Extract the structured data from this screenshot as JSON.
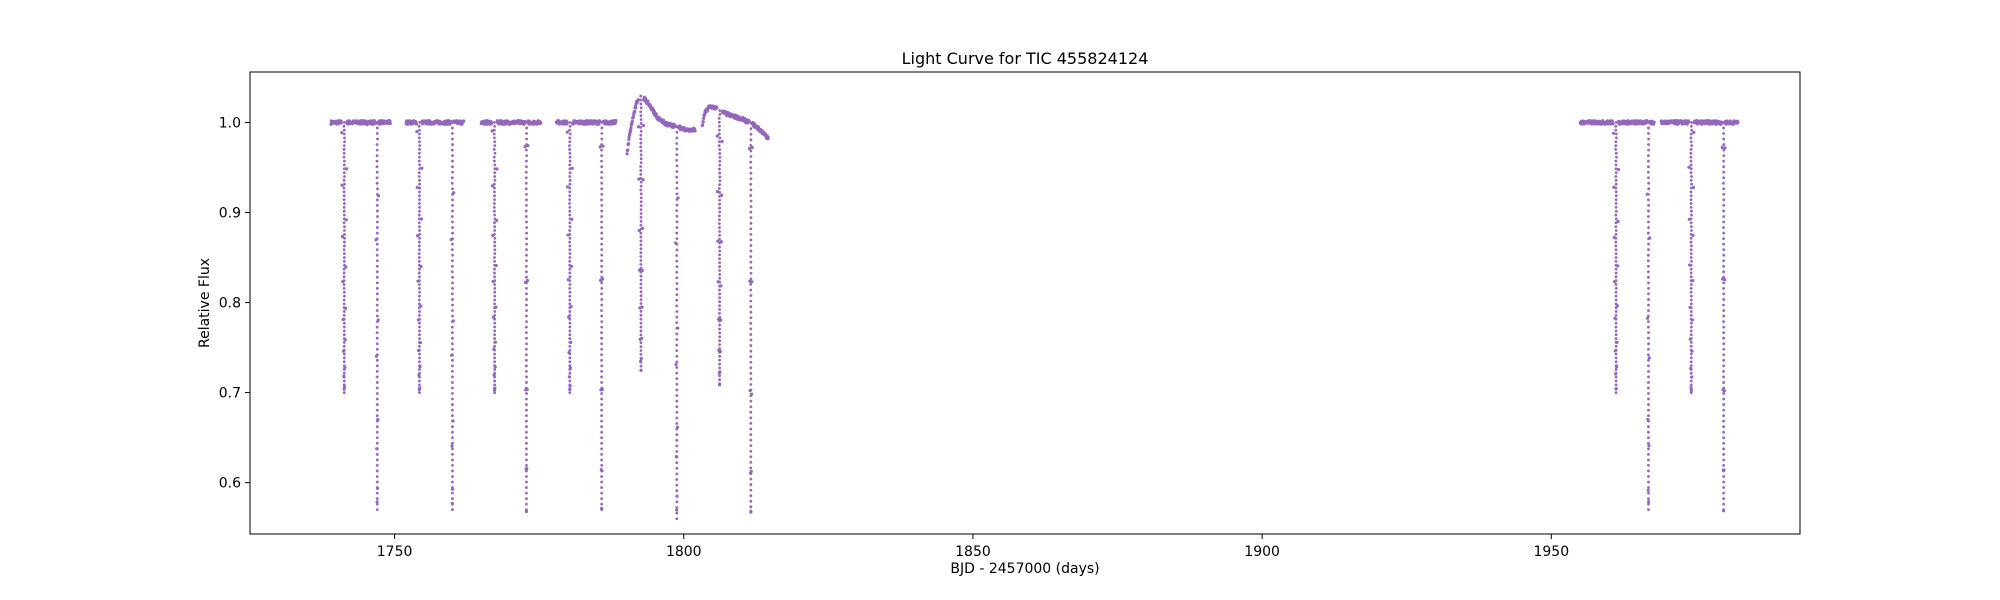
{
  "chart_data": {
    "type": "scatter",
    "title": "Light Curve for TIC 455824124",
    "xlabel": "BJD - 2457000 (days)",
    "ylabel": "Relative Flux",
    "xlim": [
      1725,
      1993
    ],
    "ylim": [
      0.543,
      1.056
    ],
    "xticks": [
      1750,
      1800,
      1850,
      1900,
      1950
    ],
    "yticks": [
      0.6,
      0.7,
      0.8,
      0.9,
      1.0
    ],
    "ytick_labels": [
      "0.6",
      "0.7",
      "0.8",
      "0.9",
      "1.0"
    ],
    "grid": false,
    "legend": "none",
    "color": "#9467bd",
    "segments": [
      {
        "x0": 1739.0,
        "x1": 1749.3,
        "base": [
          [
            0,
            1.0
          ]
        ]
      },
      {
        "x0": 1752.0,
        "x1": 1762.0,
        "base": [
          [
            0,
            1.0
          ]
        ]
      },
      {
        "x0": 1765.0,
        "x1": 1775.3,
        "base": [
          [
            0,
            1.0
          ]
        ]
      },
      {
        "x0": 1778.0,
        "x1": 1788.3,
        "base": [
          [
            0,
            1.0
          ]
        ]
      },
      {
        "x0": 1790.2,
        "x1": 1802.0,
        "base": [
          [
            1790.2,
            0.965
          ],
          [
            1790.6,
            0.985
          ],
          [
            1791.2,
            1.005
          ],
          [
            1792.0,
            1.025
          ],
          [
            1792.7,
            1.03
          ],
          [
            1794.0,
            1.02
          ],
          [
            1795.5,
            1.005
          ],
          [
            1797.0,
            0.998
          ],
          [
            1799.0,
            0.995
          ],
          [
            1800.5,
            0.992
          ],
          [
            1802.0,
            0.992
          ]
        ]
      },
      {
        "x0": 1803.2,
        "x1": 1814.6,
        "base": [
          [
            1803.2,
            0.995
          ],
          [
            1803.6,
            1.01
          ],
          [
            1804.5,
            1.018
          ],
          [
            1805.5,
            1.016
          ],
          [
            1806.5,
            1.012
          ],
          [
            1808.0,
            1.008
          ],
          [
            1810.0,
            1.004
          ],
          [
            1812.0,
            0.998
          ],
          [
            1813.5,
            0.99
          ],
          [
            1814.6,
            0.982
          ]
        ]
      },
      {
        "x0": 1955.0,
        "x1": 1967.8,
        "base": [
          [
            0,
            1.0
          ]
        ]
      },
      {
        "x0": 1969.0,
        "x1": 1982.3,
        "base": [
          [
            0,
            1.0
          ]
        ]
      }
    ],
    "eclipses": [
      {
        "t": 1741.3,
        "depth": 0.7,
        "width": 0.45
      },
      {
        "t": 1747.0,
        "depth": 0.57,
        "width": 0.25
      },
      {
        "t": 1754.3,
        "depth": 0.7,
        "width": 0.45
      },
      {
        "t": 1760.0,
        "depth": 0.57,
        "width": 0.25
      },
      {
        "t": 1767.3,
        "depth": 0.7,
        "width": 0.45
      },
      {
        "t": 1772.8,
        "depth": 0.57,
        "width": 0.25
      },
      {
        "t": 1780.3,
        "depth": 0.7,
        "width": 0.45
      },
      {
        "t": 1785.8,
        "depth": 0.57,
        "width": 0.25
      },
      {
        "t": 1792.6,
        "depth": 0.725,
        "width": 0.45
      },
      {
        "t": 1798.8,
        "depth": 0.56,
        "width": 0.25
      },
      {
        "t": 1806.2,
        "depth": 0.71,
        "width": 0.45
      },
      {
        "t": 1811.6,
        "depth": 0.567,
        "width": 0.25
      },
      {
        "t": 1961.2,
        "depth": 0.7,
        "width": 0.45
      },
      {
        "t": 1966.8,
        "depth": 0.57,
        "width": 0.25
      },
      {
        "t": 1974.2,
        "depth": 0.7,
        "width": 0.45
      },
      {
        "t": 1979.8,
        "depth": 0.57,
        "width": 0.25
      }
    ]
  }
}
